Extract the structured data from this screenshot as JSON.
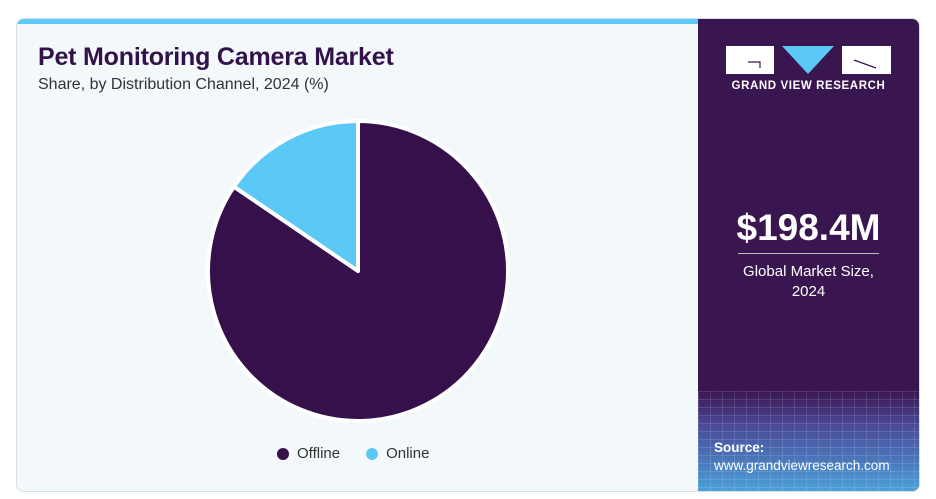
{
  "header": {
    "title": "Pet Monitoring Camera Market",
    "subtitle": "Share, by Distribution Channel, 2024 (%)"
  },
  "brand": {
    "name": "GRAND VIEW RESEARCH",
    "market_value": "$198.4M",
    "market_caption_line1": "Global Market Size,",
    "market_caption_line2": "2024",
    "source_label": "Source:",
    "source_url": "www.grandviewresearch.com"
  },
  "colors": {
    "offline": "#36104a",
    "online": "#5bc8f5",
    "panel": "#3a1650"
  },
  "chart_data": {
    "type": "pie",
    "title": "Pet Monitoring Camera Market",
    "subtitle": "Share, by Distribution Channel, 2024 (%)",
    "categories": [
      "Offline",
      "Online"
    ],
    "values": [
      84.5,
      15.5
    ],
    "colors": [
      "#36104a",
      "#5bc8f5"
    ],
    "start": "12 o'clock",
    "direction": "offline clockwise, online counter-clockwise",
    "legend": {
      "entries": [
        "Offline",
        "Online"
      ],
      "placement": "bottom"
    }
  }
}
